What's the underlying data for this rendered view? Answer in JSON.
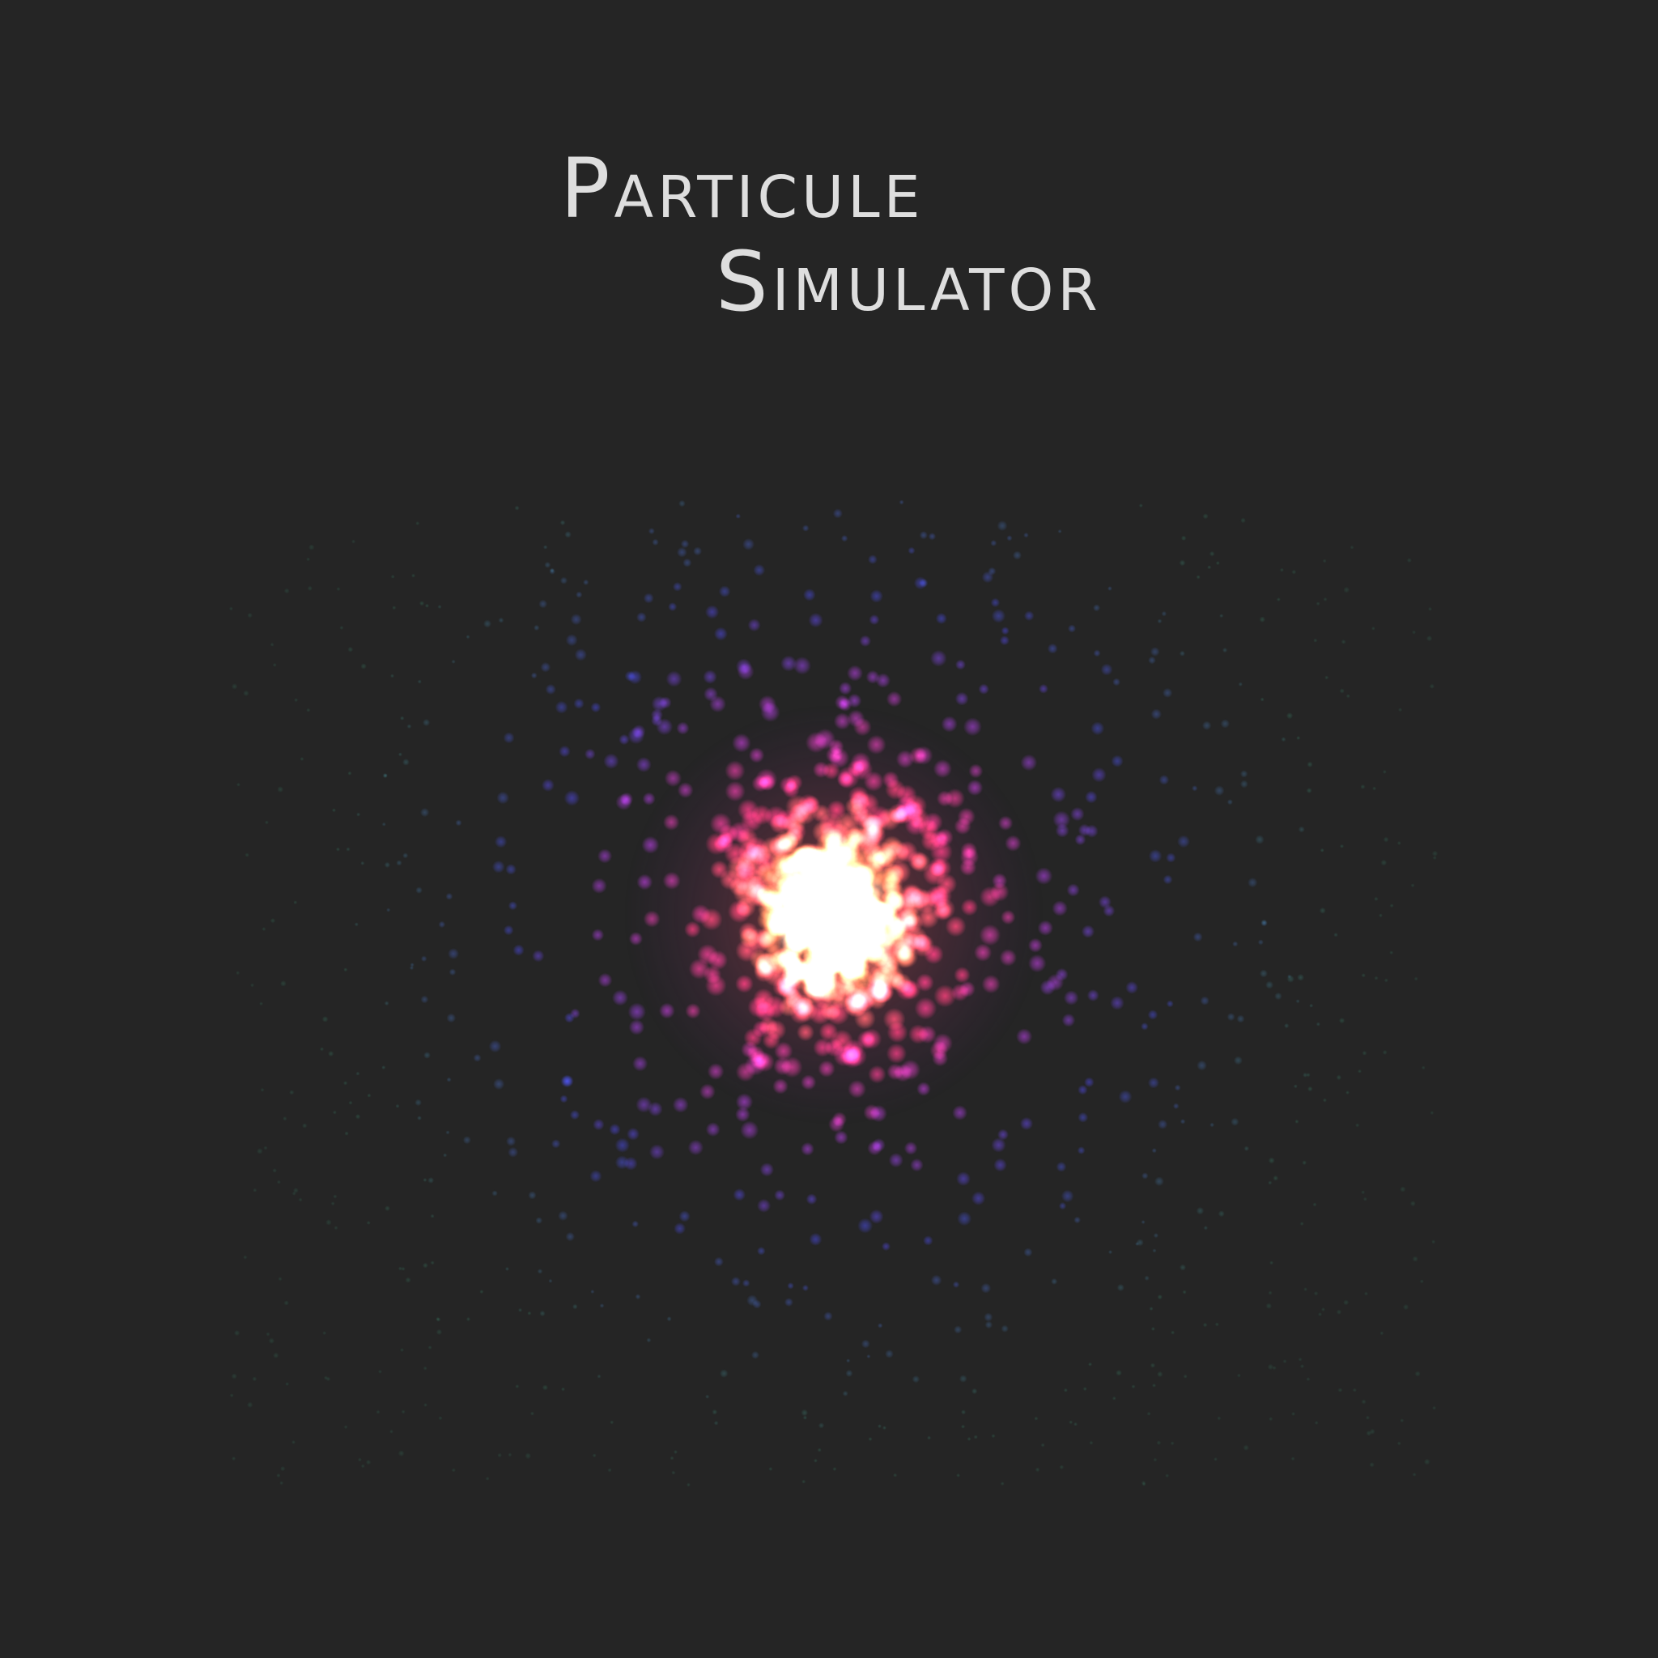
{
  "app": {
    "title_line_1": "Particule",
    "title_line_2": "Simulator"
  },
  "colors": {
    "background": "#252525",
    "title_text": "#dedede",
    "particle_core": "#fff6c8",
    "particle_hot": "#ff9a5a",
    "particle_inner": "#ff3f7a",
    "particle_mid": "#b53fd8",
    "particle_outer": "#4c4ce6",
    "particle_edge": "#3f8a6e"
  }
}
